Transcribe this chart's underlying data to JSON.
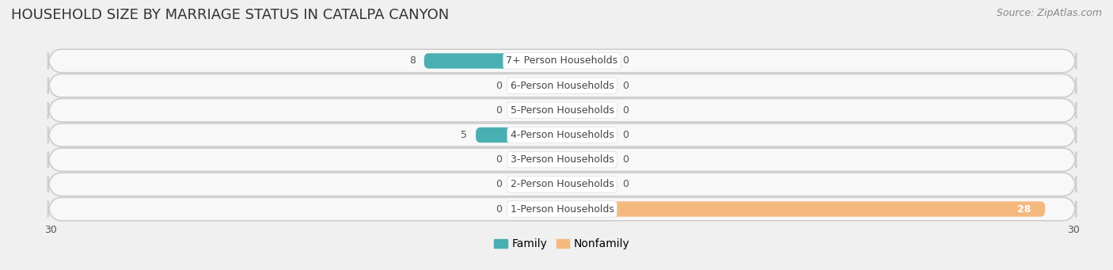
{
  "title": "HOUSEHOLD SIZE BY MARRIAGE STATUS IN CATALPA CANYON",
  "source": "Source: ZipAtlas.com",
  "categories": [
    "7+ Person Households",
    "6-Person Households",
    "5-Person Households",
    "4-Person Households",
    "3-Person Households",
    "2-Person Households",
    "1-Person Households"
  ],
  "family_values": [
    8,
    0,
    0,
    5,
    0,
    0,
    0
  ],
  "nonfamily_values": [
    0,
    0,
    0,
    0,
    0,
    0,
    28
  ],
  "family_color": "#4AAFB2",
  "nonfamily_color": "#F5B97F",
  "family_label": "Family",
  "nonfamily_label": "Nonfamily",
  "xlim_left": -30,
  "xlim_right": 30,
  "bg_color": "#f0f0f0",
  "row_bg_color": "#e8e8e8",
  "row_inner_color": "#f8f8f8",
  "title_fontsize": 13,
  "source_fontsize": 9,
  "label_fontsize": 9,
  "value_fontsize": 9,
  "legend_fontsize": 10,
  "min_bar_display": 3
}
